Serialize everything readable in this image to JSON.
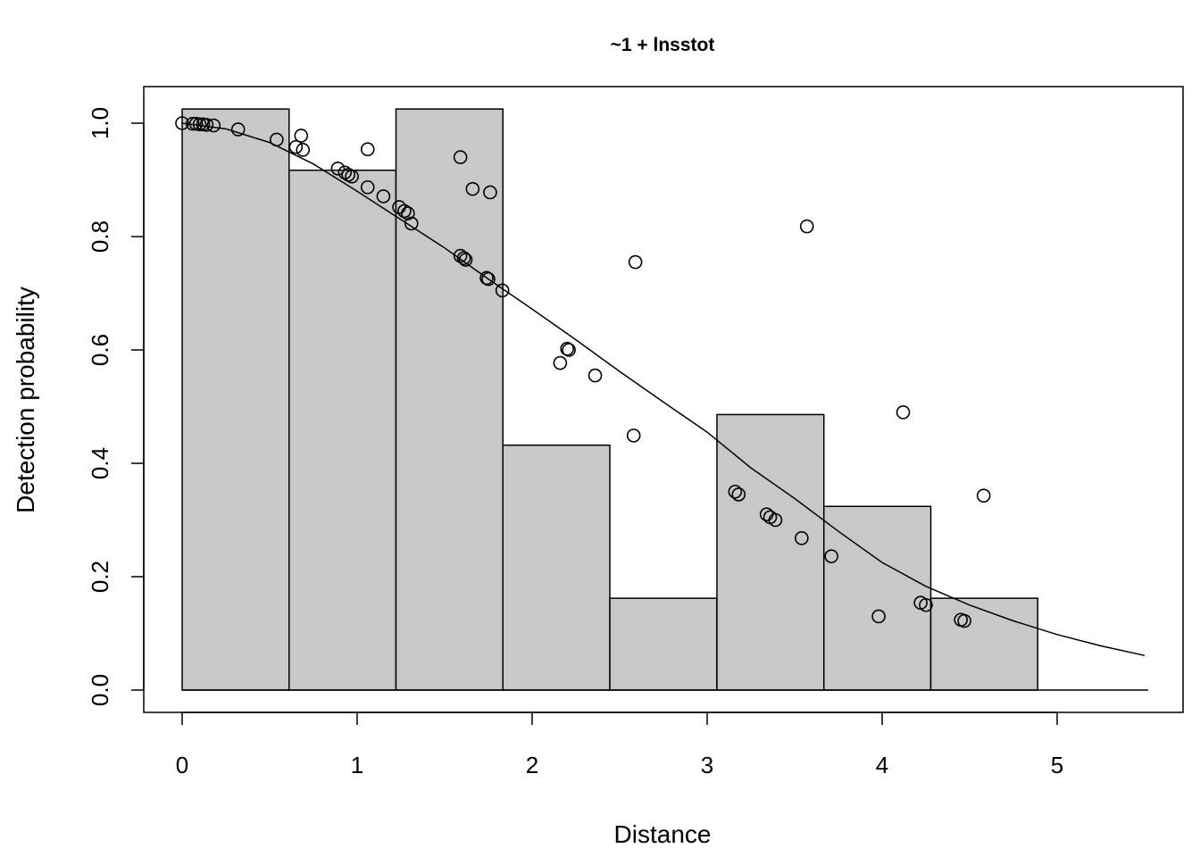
{
  "chart_data": {
    "type": "bar",
    "title": "~1 + lnsstot",
    "xlabel": "Distance",
    "ylabel": "Detection probability",
    "xlim": [
      0,
      5.5
    ],
    "ylim": [
      0,
      1.0
    ],
    "x_ticks": [
      "0",
      "1",
      "2",
      "3",
      "4",
      "5"
    ],
    "y_ticks": [
      "0.0",
      "0.2",
      "0.4",
      "0.6",
      "0.8",
      "1.0"
    ],
    "grid": false,
    "histogram": {
      "bin_edges": [
        0,
        0.611,
        1.222,
        1.833,
        2.444,
        3.056,
        3.667,
        4.278,
        4.889
      ],
      "values": [
        1.025,
        0.917,
        1.025,
        0.432,
        0.162,
        0.486,
        0.324,
        0.162
      ]
    },
    "fitted_curve": {
      "x": [
        0,
        0.25,
        0.5,
        0.75,
        1.0,
        1.25,
        1.5,
        1.75,
        2.0,
        2.25,
        2.5,
        2.75,
        3.0,
        3.25,
        3.5,
        3.75,
        4.0,
        4.25,
        4.5,
        4.75,
        5.0,
        5.25,
        5.5
      ],
      "y": [
        1.0,
        0.99,
        0.966,
        0.928,
        0.88,
        0.83,
        0.78,
        0.725,
        0.672,
        0.618,
        0.562,
        0.508,
        0.455,
        0.392,
        0.338,
        0.28,
        0.225,
        0.183,
        0.15,
        0.122,
        0.098,
        0.078,
        0.061
      ]
    },
    "points": [
      {
        "x": 0.0,
        "y": 1.0
      },
      {
        "x": 0.06,
        "y": 0.999
      },
      {
        "x": 0.08,
        "y": 0.999
      },
      {
        "x": 0.1,
        "y": 0.998
      },
      {
        "x": 0.12,
        "y": 0.998
      },
      {
        "x": 0.14,
        "y": 0.997
      },
      {
        "x": 0.18,
        "y": 0.996
      },
      {
        "x": 0.32,
        "y": 0.989
      },
      {
        "x": 0.54,
        "y": 0.971
      },
      {
        "x": 0.65,
        "y": 0.958
      },
      {
        "x": 0.68,
        "y": 0.978
      },
      {
        "x": 0.69,
        "y": 0.953
      },
      {
        "x": 0.89,
        "y": 0.92
      },
      {
        "x": 0.93,
        "y": 0.913
      },
      {
        "x": 0.95,
        "y": 0.909
      },
      {
        "x": 0.97,
        "y": 0.906
      },
      {
        "x": 1.06,
        "y": 0.954
      },
      {
        "x": 1.06,
        "y": 0.887
      },
      {
        "x": 1.15,
        "y": 0.871
      },
      {
        "x": 1.24,
        "y": 0.852
      },
      {
        "x": 1.27,
        "y": 0.845
      },
      {
        "x": 1.29,
        "y": 0.841
      },
      {
        "x": 1.31,
        "y": 0.823
      },
      {
        "x": 1.59,
        "y": 0.94
      },
      {
        "x": 1.59,
        "y": 0.766
      },
      {
        "x": 1.61,
        "y": 0.762
      },
      {
        "x": 1.62,
        "y": 0.759
      },
      {
        "x": 1.66,
        "y": 0.884
      },
      {
        "x": 1.74,
        "y": 0.727
      },
      {
        "x": 1.75,
        "y": 0.725
      },
      {
        "x": 1.76,
        "y": 0.878
      },
      {
        "x": 1.83,
        "y": 0.705
      },
      {
        "x": 2.16,
        "y": 0.577
      },
      {
        "x": 2.2,
        "y": 0.602
      },
      {
        "x": 2.21,
        "y": 0.6
      },
      {
        "x": 2.36,
        "y": 0.555
      },
      {
        "x": 2.58,
        "y": 0.449
      },
      {
        "x": 2.59,
        "y": 0.755
      },
      {
        "x": 3.16,
        "y": 0.35
      },
      {
        "x": 3.18,
        "y": 0.345
      },
      {
        "x": 3.34,
        "y": 0.31
      },
      {
        "x": 3.36,
        "y": 0.305
      },
      {
        "x": 3.39,
        "y": 0.3
      },
      {
        "x": 3.54,
        "y": 0.268
      },
      {
        "x": 3.57,
        "y": 0.818
      },
      {
        "x": 3.71,
        "y": 0.236
      },
      {
        "x": 3.98,
        "y": 0.13
      },
      {
        "x": 4.12,
        "y": 0.49
      },
      {
        "x": 4.22,
        "y": 0.154
      },
      {
        "x": 4.25,
        "y": 0.15
      },
      {
        "x": 4.45,
        "y": 0.124
      },
      {
        "x": 4.47,
        "y": 0.122
      },
      {
        "x": 4.58,
        "y": 0.343
      }
    ]
  }
}
